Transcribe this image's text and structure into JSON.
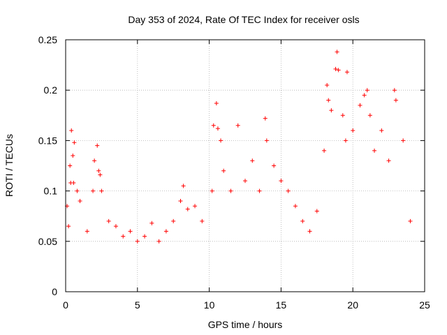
{
  "chart_data": {
    "type": "scatter",
    "title": "Day 353 of 2024, Rate Of TEC Index for receiver osls",
    "xlabel": "GPS time / hours",
    "ylabel": "ROTI / TECUs",
    "xlim": [
      0,
      25
    ],
    "ylim": [
      0,
      0.25
    ],
    "xticks": [
      0,
      5,
      10,
      15,
      20,
      25
    ],
    "yticks": [
      0,
      0.05,
      0.1,
      0.15,
      0.2,
      0.25
    ],
    "xtick_labels": [
      "0",
      "5",
      "10",
      "15",
      "20",
      "25"
    ],
    "ytick_labels": [
      "0",
      "0.05",
      "0.1",
      "0.15",
      "0.2",
      "0.25"
    ],
    "grid": true,
    "marker": "plus",
    "color": "#ff0000",
    "series": [
      {
        "name": "ROTI",
        "x": [
          0.1,
          0.2,
          0.3,
          0.35,
          0.4,
          0.5,
          0.55,
          0.6,
          0.8,
          1.0,
          1.5,
          1.9,
          2.0,
          2.2,
          2.3,
          2.4,
          2.5,
          3.0,
          3.5,
          4.0,
          4.5,
          5.0,
          5.5,
          6.0,
          6.5,
          7.0,
          7.5,
          8.0,
          8.2,
          8.5,
          9.0,
          9.5,
          10.2,
          10.3,
          10.5,
          10.6,
          10.8,
          11.0,
          11.5,
          12.0,
          12.5,
          13.0,
          13.5,
          13.9,
          14.0,
          14.5,
          15.0,
          15.5,
          16.0,
          16.5,
          17.0,
          17.5,
          18.0,
          18.2,
          18.3,
          18.5,
          18.8,
          18.9,
          19.0,
          19.3,
          19.5,
          19.6,
          20.0,
          20.5,
          20.8,
          21.0,
          21.2,
          21.5,
          22.0,
          22.5,
          22.9,
          23.0,
          23.5,
          24.0
        ],
        "y": [
          0.085,
          0.065,
          0.125,
          0.108,
          0.16,
          0.135,
          0.108,
          0.148,
          0.1,
          0.09,
          0.06,
          0.1,
          0.13,
          0.145,
          0.12,
          0.116,
          0.1,
          0.07,
          0.065,
          0.055,
          0.06,
          0.05,
          0.055,
          0.068,
          0.05,
          0.06,
          0.07,
          0.09,
          0.105,
          0.082,
          0.085,
          0.07,
          0.1,
          0.165,
          0.187,
          0.162,
          0.15,
          0.12,
          0.1,
          0.165,
          0.11,
          0.13,
          0.1,
          0.172,
          0.15,
          0.125,
          0.11,
          0.1,
          0.085,
          0.07,
          0.06,
          0.08,
          0.14,
          0.205,
          0.19,
          0.18,
          0.221,
          0.238,
          0.22,
          0.175,
          0.15,
          0.218,
          0.16,
          0.185,
          0.195,
          0.2,
          0.175,
          0.14,
          0.16,
          0.13,
          0.2,
          0.19,
          0.15,
          0.07
        ]
      }
    ]
  }
}
